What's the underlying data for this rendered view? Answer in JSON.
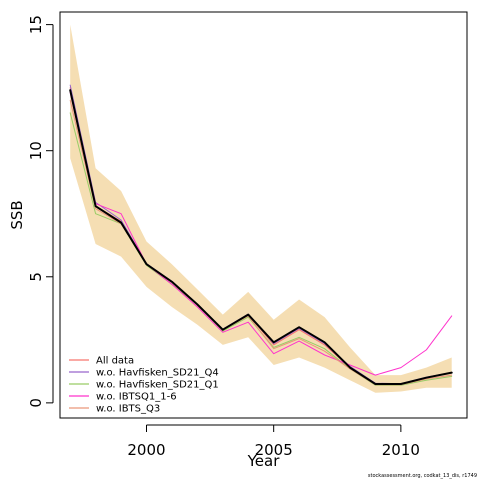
{
  "chart_data": {
    "type": "line",
    "xlabel": "Year",
    "ylabel": "SSB",
    "xlim": [
      1996.6,
      2012.6
    ],
    "ylim": [
      -0.6,
      15.5
    ],
    "xticks": [
      2000,
      2005,
      2010
    ],
    "yticks": [
      0,
      5,
      10,
      15
    ],
    "grid": false,
    "legend_position": "bottom-left",
    "x": [
      1997,
      1998,
      1999,
      2000,
      2001,
      2002,
      2003,
      2004,
      2005,
      2006,
      2007,
      2008,
      2009,
      2010,
      2011,
      2012
    ],
    "confidence_band": {
      "color": "#f5deb3",
      "upper": [
        15.0,
        9.3,
        8.4,
        6.4,
        5.5,
        4.5,
        3.5,
        4.4,
        3.3,
        4.1,
        3.4,
        2.2,
        1.1,
        1.1,
        1.4,
        1.8
      ],
      "lower": [
        9.7,
        6.3,
        5.8,
        4.6,
        3.8,
        3.1,
        2.3,
        2.6,
        1.5,
        1.8,
        1.4,
        0.9,
        0.4,
        0.45,
        0.6,
        0.6
      ]
    },
    "series": [
      {
        "name": "All data",
        "color": "#f8766d",
        "width": 1,
        "values": [
          12.5,
          7.8,
          7.2,
          5.5,
          4.8,
          3.9,
          2.9,
          3.5,
          2.3,
          2.9,
          2.3,
          1.4,
          0.75,
          0.75,
          1.0,
          1.2
        ]
      },
      {
        "name": "w.o. Havfisken_SD21_Q4",
        "color": "#9966cc",
        "width": 1,
        "values": [
          12.6,
          7.95,
          7.25,
          5.52,
          4.82,
          3.92,
          2.92,
          3.52,
          2.35,
          2.95,
          2.35,
          1.45,
          0.78,
          0.76,
          1.02,
          1.2
        ]
      },
      {
        "name": "w.o. Havfisken_SD21_Q1",
        "color": "#99cc66",
        "width": 1,
        "values": [
          11.5,
          7.5,
          7.1,
          5.45,
          4.7,
          3.9,
          2.85,
          3.4,
          2.2,
          2.6,
          2.15,
          1.35,
          0.7,
          0.7,
          0.9,
          1.05
        ]
      },
      {
        "name": "w.o. IBTSQ1_1-6",
        "color": "#ff33cc",
        "width": 1,
        "values": [
          12.3,
          7.9,
          7.5,
          5.5,
          4.7,
          3.8,
          2.8,
          3.2,
          1.95,
          2.45,
          1.9,
          1.5,
          1.1,
          1.4,
          2.1,
          3.45
        ]
      },
      {
        "name": "w.o. IBTS_Q3",
        "color": "#e9967a",
        "width": 1,
        "values": [
          12.0,
          7.7,
          7.1,
          5.5,
          4.8,
          3.9,
          2.9,
          3.45,
          2.15,
          2.55,
          2.05,
          1.35,
          0.72,
          0.72,
          0.95,
          1.1
        ]
      },
      {
        "name": "",
        "color": "#000000",
        "width": 2,
        "values": [
          12.4,
          7.8,
          7.15,
          5.5,
          4.8,
          3.9,
          2.9,
          3.5,
          2.4,
          3.0,
          2.4,
          1.4,
          0.75,
          0.75,
          1.0,
          1.2
        ]
      }
    ],
    "footnote": "stockassessment.org, codkat_13_dis, r1749"
  }
}
